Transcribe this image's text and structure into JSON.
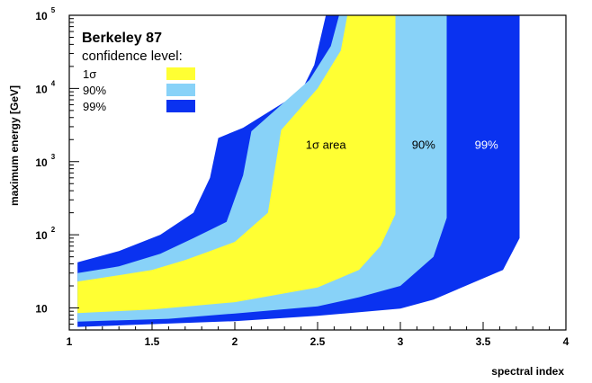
{
  "chart_data": {
    "type": "area",
    "title": "",
    "xlabel": "spectral index",
    "ylabel": "maximum energy [GeV]",
    "xlim": [
      1,
      4
    ],
    "ylim": [
      5,
      100000
    ],
    "yscale": "log",
    "grid": false,
    "x_ticks": [
      {
        "value": 1,
        "label": "1"
      },
      {
        "value": 1.5,
        "label": "1.5"
      },
      {
        "value": 2,
        "label": "2"
      },
      {
        "value": 2.5,
        "label": "2.5"
      },
      {
        "value": 3,
        "label": "3"
      },
      {
        "value": 3.5,
        "label": "3.5"
      },
      {
        "value": 4,
        "label": "4"
      }
    ],
    "y_ticks": [
      {
        "value": 10,
        "base": "10",
        "exp": ""
      },
      {
        "value": 100,
        "base": "10",
        "exp": "2"
      },
      {
        "value": 1000,
        "base": "10",
        "exp": "3"
      },
      {
        "value": 10000,
        "base": "10",
        "exp": "4"
      },
      {
        "value": 100000,
        "base": "10",
        "exp": "5"
      }
    ],
    "legend": {
      "placement": "top-left",
      "title": "Berkeley 87",
      "subtitle": "confidence level:",
      "entries": [
        {
          "label": "1σ",
          "color": "#ffff33"
        },
        {
          "label": "90%",
          "color": "#88d2f8"
        },
        {
          "label": "99%",
          "color": "#0a32f0"
        }
      ]
    },
    "series": [
      {
        "name": "99%",
        "color": "#0a32f0",
        "points": [
          [
            1.05,
            42
          ],
          [
            1.3,
            60
          ],
          [
            1.55,
            100
          ],
          [
            1.75,
            200
          ],
          [
            1.85,
            600
          ],
          [
            1.9,
            2100
          ],
          [
            2.05,
            2900
          ],
          [
            2.4,
            9000
          ],
          [
            2.48,
            21000
          ],
          [
            2.55,
            100000
          ],
          [
            3.72,
            100000
          ],
          [
            3.72,
            90
          ],
          [
            3.62,
            33
          ],
          [
            3.2,
            13
          ],
          [
            3.0,
            9.8
          ],
          [
            2.5,
            7.8
          ],
          [
            2.0,
            6.6
          ],
          [
            1.05,
            5.5
          ]
        ]
      },
      {
        "name": "90%",
        "color": "#88d2f8",
        "points": [
          [
            1.05,
            30
          ],
          [
            1.3,
            37
          ],
          [
            1.55,
            55
          ],
          [
            1.75,
            90
          ],
          [
            1.95,
            150
          ],
          [
            2.05,
            650
          ],
          [
            2.1,
            2600
          ],
          [
            2.45,
            13000
          ],
          [
            2.58,
            38000
          ],
          [
            2.63,
            100000
          ],
          [
            3.28,
            100000
          ],
          [
            3.28,
            170
          ],
          [
            3.2,
            50
          ],
          [
            3.0,
            20
          ],
          [
            2.75,
            14
          ],
          [
            2.5,
            10.5
          ],
          [
            2.0,
            8.4
          ],
          [
            1.6,
            7.1
          ],
          [
            1.05,
            6.5
          ]
        ]
      },
      {
        "name": "1σ",
        "color": "#ffff33",
        "points": [
          [
            1.05,
            23
          ],
          [
            1.3,
            28
          ],
          [
            1.5,
            33
          ],
          [
            1.7,
            45
          ],
          [
            1.85,
            60
          ],
          [
            2.0,
            80
          ],
          [
            2.2,
            200
          ],
          [
            2.28,
            2700
          ],
          [
            2.5,
            10000
          ],
          [
            2.64,
            33000
          ],
          [
            2.68,
            100000
          ],
          [
            2.97,
            100000
          ],
          [
            2.97,
            190
          ],
          [
            2.88,
            70
          ],
          [
            2.75,
            33
          ],
          [
            2.5,
            19
          ],
          [
            2.0,
            12
          ],
          [
            1.5,
            9.5
          ],
          [
            1.05,
            8.5
          ]
        ]
      }
    ],
    "annotations": [
      {
        "text": "1σ area",
        "x": 2.55,
        "y": 1500,
        "color": "#000000"
      },
      {
        "text": "90%",
        "x": 3.14,
        "y": 1500,
        "color": "#000000"
      },
      {
        "text": "99%",
        "x": 3.52,
        "y": 1500,
        "color": "#ffffff"
      }
    ]
  }
}
